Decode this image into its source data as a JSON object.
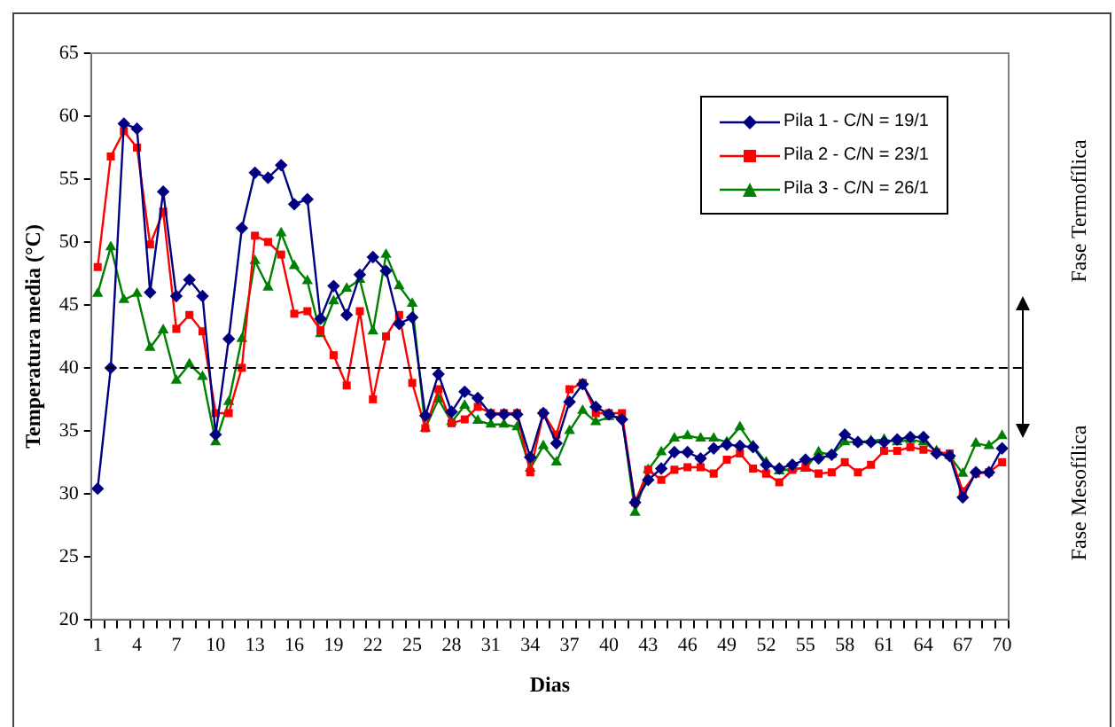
{
  "chart_data": {
    "type": "line",
    "xlabel": "Dias",
    "ylabel": "Temperatura media (°C)",
    "categories": [
      "1",
      null,
      null,
      "4",
      null,
      null,
      "7",
      null,
      null,
      "10",
      null,
      null,
      "13",
      null,
      null,
      "16",
      null,
      null,
      "19",
      null,
      null,
      "22",
      null,
      null,
      "25",
      null,
      null,
      "28",
      null,
      null,
      "31",
      null,
      null,
      "34",
      null,
      null,
      "37",
      null,
      null,
      "40",
      null,
      null,
      "43",
      null,
      null,
      "46",
      null,
      null,
      "49",
      null,
      null,
      "52",
      null,
      null,
      "55",
      null,
      null,
      "58",
      null,
      null,
      "61",
      null,
      null,
      "64",
      null,
      null,
      "67",
      null,
      null,
      "70"
    ],
    "series": [
      {
        "name": "Pila 1 - C/N = 19/1",
        "color": "#000080",
        "marker": "diamond",
        "values": [
          30.4,
          40,
          59.4,
          59,
          46,
          54,
          45.7,
          47,
          45.7,
          34.7,
          42.3,
          51.1,
          55.5,
          55.1,
          56.1,
          53,
          53.4,
          43.9,
          46.5,
          44.2,
          47.4,
          48.8,
          47.7,
          43.5,
          44,
          36.2,
          39.5,
          36.5,
          38.1,
          37.6,
          36.3,
          36.3,
          36.3,
          32.9,
          36.4,
          34,
          37.3,
          38.7,
          36.9,
          36.3,
          35.9,
          29.3,
          31.1,
          32,
          33.3,
          33.3,
          32.8,
          33.6,
          33.9,
          33.8,
          33.7,
          32.3,
          32,
          32.3,
          32.7,
          32.8,
          33.1,
          34.7,
          34.1,
          34.1,
          34.1,
          34.3,
          34.5,
          34.5,
          33.2,
          33,
          29.7,
          31.7,
          31.7,
          33.6
        ]
      },
      {
        "name": "Pila 2 - C/N = 23/1",
        "color": "#ff0000",
        "marker": "square",
        "values": [
          48,
          56.8,
          58.8,
          57.5,
          49.8,
          52.4,
          43.1,
          44.2,
          42.9,
          36.4,
          36.4,
          40,
          50.5,
          50,
          49,
          44.3,
          44.5,
          43,
          41,
          38.6,
          44.5,
          37.5,
          42.5,
          44.2,
          38.8,
          35.2,
          38.3,
          35.6,
          35.9,
          36.9,
          36.4,
          36.4,
          36.4,
          31.7,
          36.4,
          34.7,
          38.3,
          38.8,
          36.4,
          36.4,
          36.4,
          29.3,
          31.9,
          31.1,
          31.9,
          32.1,
          32.1,
          31.6,
          32.7,
          33.2,
          32,
          31.6,
          30.9,
          31.9,
          32.1,
          31.6,
          31.7,
          32.5,
          31.7,
          32.3,
          33.4,
          33.4,
          33.7,
          33.5,
          33.3,
          33.2,
          30.2,
          31.6,
          31.7,
          32.5
        ]
      },
      {
        "name": "Pila 3 - C/N = 26/1",
        "color": "#008000",
        "marker": "triangle",
        "values": [
          45.9,
          49.6,
          45.4,
          45.9,
          41.6,
          43,
          39,
          40.3,
          39.3,
          34.1,
          37.3,
          42.3,
          48.5,
          46.4,
          50.7,
          48.1,
          46.9,
          42.7,
          45.3,
          46.3,
          47,
          42.9,
          49,
          46.5,
          45.1,
          35.2,
          37.5,
          35.7,
          37,
          35.8,
          35.5,
          35.5,
          35.3,
          32,
          33.8,
          32.5,
          35,
          36.6,
          35.7,
          36.1,
          36.1,
          28.5,
          31.9,
          33.3,
          34.4,
          34.6,
          34.4,
          34.4,
          34.1,
          35.3,
          33.8,
          32.5,
          31.8,
          32,
          32,
          33.3,
          33.1,
          34.1,
          34.1,
          34.2,
          34.3,
          34.1,
          34.3,
          34.1,
          33.4,
          33,
          31.6,
          34,
          33.8,
          34.6
        ]
      }
    ],
    "ylim": [
      20,
      65
    ],
    "yticks": [
      20,
      25,
      30,
      35,
      40,
      45,
      50,
      55,
      60,
      65
    ],
    "grid": false,
    "legend": "top right",
    "line_style": "solid",
    "ref_lines": [
      {
        "axis": "y",
        "value": 40,
        "color": "#000000",
        "line_style": "dashed"
      }
    ],
    "annotations": [
      "Fase Termofílica",
      "Fase Mesofílica"
    ]
  }
}
